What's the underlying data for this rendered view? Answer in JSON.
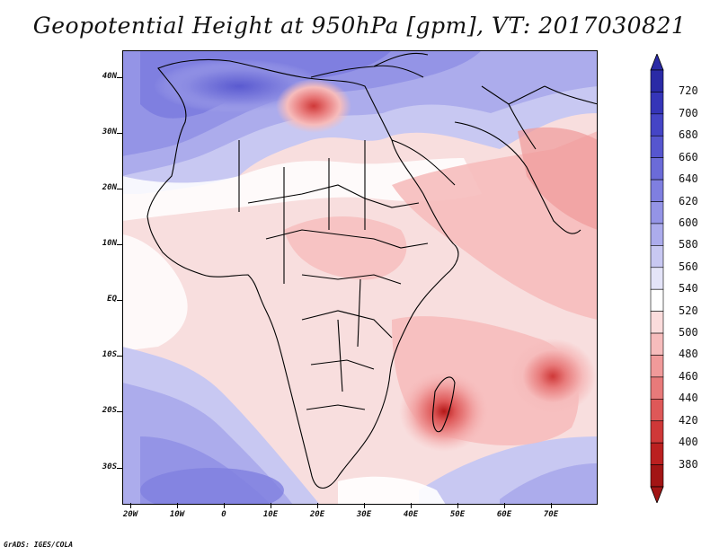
{
  "title": "Geopotential Height at 950hPa [gpm], VT: 2017030821",
  "credit": "GrADS: IGES/COLA",
  "y_axis_labels": [
    "40N",
    "30N",
    "20N",
    "10N",
    "EQ",
    "10S",
    "20S",
    "30S"
  ],
  "x_axis_labels": [
    "20W",
    "10W",
    "0",
    "10E",
    "20E",
    "30E",
    "40E",
    "50E",
    "60E",
    "70E"
  ],
  "colorbar": {
    "labels": [
      "720",
      "700",
      "680",
      "660",
      "640",
      "620",
      "600",
      "580",
      "560",
      "540",
      "520",
      "500",
      "480",
      "460",
      "440",
      "420",
      "400",
      "380"
    ],
    "colors": [
      "#2a2aa6",
      "#3535b8",
      "#4545c6",
      "#5656cf",
      "#6b6bd8",
      "#7f7fe0",
      "#9494e6",
      "#acacec",
      "#c8c8f2",
      "#e4e4f8",
      "#ffffff",
      "#fbdcdc",
      "#f6bcbc",
      "#f09a9a",
      "#e87a7a",
      "#de5858",
      "#cf3838",
      "#bb2020",
      "#a21515"
    ]
  },
  "map_style": {
    "base_fill": "#f8dede",
    "border_color": "#000000"
  }
}
